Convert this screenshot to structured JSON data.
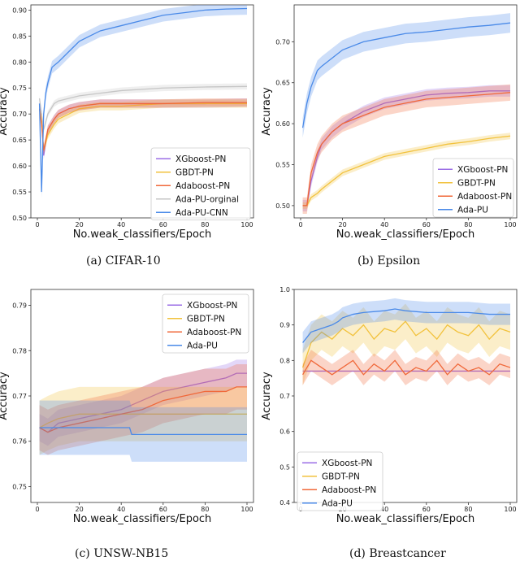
{
  "chart_data": [
    {
      "type": "line",
      "caption": "(a) CIFAR-10",
      "xlabel": "No.weak_classifiers/Epoch",
      "ylabel": "Accuracy",
      "xlim": [
        0,
        100
      ],
      "ylim": [
        0.5,
        0.91
      ],
      "xticks": [
        0,
        20,
        40,
        60,
        80,
        100
      ],
      "yticks": [
        0.5,
        0.55,
        0.6,
        0.65,
        0.7,
        0.75,
        0.8,
        0.85,
        0.9
      ],
      "ytick_decimals": 2,
      "grid": false,
      "legend_position": "bottom-right",
      "series": [
        {
          "name": "XGboost-PN",
          "color": "#9b6ee6",
          "x": [
            1,
            2,
            3,
            5,
            8,
            10,
            15,
            20,
            30,
            40,
            60,
            80,
            100
          ],
          "y": [
            0.72,
            0.7,
            0.62,
            0.67,
            0.69,
            0.7,
            0.71,
            0.715,
            0.72,
            0.72,
            0.72,
            0.72,
            0.722
          ],
          "band": 0.008
        },
        {
          "name": "GBDT-PN",
          "color": "#f2c23d",
          "x": [
            1,
            2,
            3,
            5,
            8,
            10,
            15,
            20,
            30,
            40,
            60,
            80,
            100
          ],
          "y": [
            0.71,
            0.69,
            0.63,
            0.66,
            0.68,
            0.69,
            0.7,
            0.71,
            0.715,
            0.715,
            0.72,
            0.72,
            0.72
          ],
          "band": 0.008
        },
        {
          "name": "Adaboost-PN",
          "color": "#f0683a",
          "x": [
            1,
            2,
            3,
            5,
            8,
            10,
            15,
            20,
            30,
            40,
            60,
            80,
            100
          ],
          "y": [
            0.71,
            0.68,
            0.63,
            0.67,
            0.69,
            0.7,
            0.71,
            0.715,
            0.72,
            0.72,
            0.72,
            0.722,
            0.722
          ],
          "band": 0.008
        },
        {
          "name": "Ada-PU-orginal",
          "color": "#c6c6c6",
          "x": [
            1,
            2,
            3,
            5,
            8,
            10,
            15,
            20,
            30,
            40,
            60,
            80,
            100
          ],
          "y": [
            0.73,
            0.7,
            0.67,
            0.7,
            0.72,
            0.725,
            0.73,
            0.735,
            0.74,
            0.745,
            0.75,
            0.752,
            0.753
          ],
          "band": 0.006
        },
        {
          "name": "Ada-PU-CNN",
          "color": "#4a8ae8",
          "x": [
            1,
            2,
            3,
            4,
            5,
            7,
            10,
            15,
            20,
            25,
            30,
            40,
            50,
            60,
            70,
            80,
            90,
            100
          ],
          "y": [
            0.72,
            0.55,
            0.7,
            0.74,
            0.76,
            0.79,
            0.8,
            0.82,
            0.84,
            0.85,
            0.86,
            0.87,
            0.88,
            0.89,
            0.895,
            0.9,
            0.902,
            0.903
          ],
          "band": 0.012
        }
      ]
    },
    {
      "type": "line",
      "caption": "(b) Epsilon",
      "xlabel": "No.weak_classifiers/Epoch",
      "ylabel": "Accuracy",
      "xlim": [
        0,
        100
      ],
      "ylim": [
        0.485,
        0.745
      ],
      "xticks": [
        0,
        20,
        40,
        60,
        80,
        100
      ],
      "yticks": [
        0.5,
        0.55,
        0.6,
        0.65,
        0.7
      ],
      "ytick_decimals": 2,
      "grid": false,
      "legend_position": "bottom-right",
      "series": [
        {
          "name": "XGboost-PN",
          "color": "#9b6ee6",
          "x": [
            1,
            3,
            5,
            8,
            10,
            15,
            20,
            30,
            40,
            50,
            60,
            70,
            80,
            90,
            100
          ],
          "y": [
            0.5,
            0.5,
            0.53,
            0.56,
            0.575,
            0.59,
            0.6,
            0.615,
            0.625,
            0.63,
            0.635,
            0.637,
            0.638,
            0.64,
            0.64
          ],
          "band": 0.007
        },
        {
          "name": "GBDT-PN",
          "color": "#f2c23d",
          "x": [
            1,
            3,
            5,
            8,
            10,
            15,
            20,
            30,
            40,
            50,
            60,
            70,
            80,
            90,
            100
          ],
          "y": [
            0.5,
            0.5,
            0.51,
            0.515,
            0.52,
            0.53,
            0.54,
            0.55,
            0.56,
            0.565,
            0.57,
            0.575,
            0.578,
            0.582,
            0.585
          ],
          "band": 0.004
        },
        {
          "name": "Adaboost-PN",
          "color": "#f0683a",
          "x": [
            1,
            3,
            5,
            8,
            10,
            15,
            20,
            30,
            40,
            50,
            60,
            70,
            80,
            90,
            100
          ],
          "y": [
            0.5,
            0.5,
            0.54,
            0.565,
            0.575,
            0.59,
            0.6,
            0.61,
            0.62,
            0.625,
            0.63,
            0.632,
            0.634,
            0.636,
            0.638
          ],
          "band": 0.01
        },
        {
          "name": "Ada-PU",
          "color": "#4a8ae8",
          "x": [
            1,
            3,
            5,
            8,
            10,
            15,
            20,
            30,
            40,
            50,
            60,
            70,
            80,
            90,
            100
          ],
          "y": [
            0.595,
            0.625,
            0.645,
            0.665,
            0.67,
            0.68,
            0.69,
            0.7,
            0.705,
            0.71,
            0.712,
            0.715,
            0.718,
            0.72,
            0.723
          ],
          "band": 0.012
        }
      ]
    },
    {
      "type": "line",
      "caption": "(c) UNSW-NB15",
      "xlabel": "No.weak_classifiers/Epoch",
      "ylabel": "Accuracy",
      "xlim": [
        0,
        100
      ],
      "ylim": [
        0.7465,
        0.7935
      ],
      "xticks": [
        0,
        20,
        40,
        60,
        80,
        100
      ],
      "yticks": [
        0.75,
        0.76,
        0.77,
        0.78,
        0.79
      ],
      "ytick_decimals": 2,
      "grid": false,
      "legend_position": "top-right",
      "series": [
        {
          "name": "XGboost-PN",
          "color": "#9b6ee6",
          "x": [
            1,
            5,
            10,
            20,
            30,
            40,
            50,
            60,
            70,
            80,
            90,
            95,
            100
          ],
          "y": [
            0.763,
            0.762,
            0.764,
            0.765,
            0.766,
            0.767,
            0.769,
            0.771,
            0.772,
            0.773,
            0.774,
            0.775,
            0.775
          ],
          "band": 0.003
        },
        {
          "name": "GBDT-PN",
          "color": "#f2c23d",
          "x": [
            1,
            5,
            10,
            20,
            30,
            40,
            50,
            60,
            70,
            80,
            90,
            100
          ],
          "y": [
            0.763,
            0.764,
            0.765,
            0.766,
            0.766,
            0.766,
            0.766,
            0.766,
            0.766,
            0.766,
            0.766,
            0.766
          ],
          "band": 0.006
        },
        {
          "name": "Adaboost-PN",
          "color": "#f0683a",
          "x": [
            1,
            5,
            10,
            20,
            30,
            40,
            50,
            60,
            70,
            80,
            90,
            95,
            100
          ],
          "y": [
            0.763,
            0.762,
            0.763,
            0.764,
            0.765,
            0.766,
            0.767,
            0.769,
            0.77,
            0.771,
            0.771,
            0.772,
            0.772
          ],
          "band": 0.005
        },
        {
          "name": "Ada-PU",
          "color": "#4a8ae8",
          "x": [
            1,
            10,
            20,
            30,
            40,
            44,
            45,
            60,
            80,
            100
          ],
          "y": [
            0.763,
            0.763,
            0.763,
            0.763,
            0.763,
            0.763,
            0.7615,
            0.7615,
            0.7615,
            0.7615
          ],
          "band": 0.006
        }
      ]
    },
    {
      "type": "line",
      "caption": "(d) Breastcancer",
      "xlabel": "No.weak_classifiers/Epoch",
      "ylabel": "Accuracy",
      "xlim": [
        0,
        100
      ],
      "ylim": [
        0.4,
        1.0
      ],
      "xticks": [
        0,
        20,
        40,
        60,
        80,
        100
      ],
      "yticks": [
        0.4,
        0.5,
        0.6,
        0.7,
        0.8,
        0.9,
        1.0
      ],
      "ytick_decimals": 1,
      "grid": false,
      "legend_position": "bottom-left",
      "series": [
        {
          "name": "XGboost-PN",
          "color": "#9b6ee6",
          "x": [
            1,
            100
          ],
          "y": [
            0.77,
            0.77
          ],
          "band": 0.0
        },
        {
          "name": "GBDT-PN",
          "color": "#f2c23d",
          "x": [
            1,
            5,
            10,
            15,
            20,
            25,
            30,
            35,
            40,
            45,
            50,
            55,
            60,
            65,
            70,
            75,
            80,
            85,
            90,
            95,
            100
          ],
          "y": [
            0.78,
            0.85,
            0.88,
            0.86,
            0.89,
            0.87,
            0.9,
            0.86,
            0.89,
            0.88,
            0.91,
            0.87,
            0.89,
            0.86,
            0.9,
            0.88,
            0.87,
            0.9,
            0.86,
            0.89,
            0.88
          ],
          "band": 0.05
        },
        {
          "name": "Adaboost-PN",
          "color": "#f0683a",
          "x": [
            1,
            5,
            10,
            15,
            20,
            25,
            30,
            35,
            40,
            45,
            50,
            55,
            60,
            65,
            70,
            75,
            80,
            85,
            90,
            95,
            100
          ],
          "y": [
            0.76,
            0.8,
            0.78,
            0.76,
            0.78,
            0.8,
            0.76,
            0.79,
            0.77,
            0.8,
            0.76,
            0.78,
            0.77,
            0.8,
            0.76,
            0.79,
            0.77,
            0.78,
            0.76,
            0.79,
            0.78
          ],
          "band": 0.03
        },
        {
          "name": "Ada-PU",
          "color": "#4a8ae8",
          "x": [
            1,
            5,
            10,
            15,
            18,
            20,
            25,
            30,
            40,
            45,
            50,
            60,
            70,
            80,
            90,
            100
          ],
          "y": [
            0.85,
            0.88,
            0.89,
            0.9,
            0.91,
            0.92,
            0.93,
            0.935,
            0.94,
            0.945,
            0.94,
            0.935,
            0.935,
            0.935,
            0.93,
            0.93
          ],
          "band": 0.03
        }
      ]
    }
  ]
}
